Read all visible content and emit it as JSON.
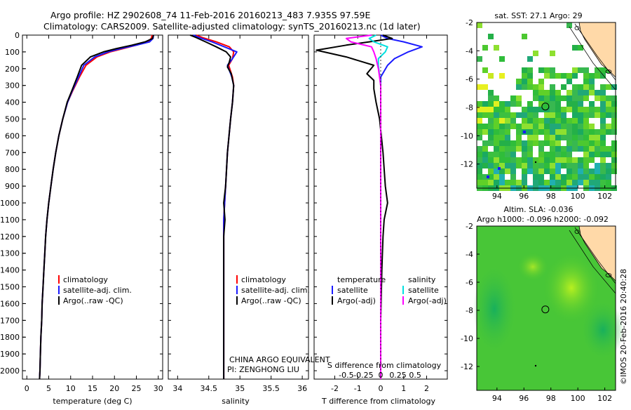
{
  "header": {
    "line1": "Argo profile: HZ 2902608_74 11-Feb-2016 20160213_483 7.935S 97.59E",
    "line2": "Climatology: CARS2009. Satellite-adjusted climatology: synTS_20160213.nc (1d later)"
  },
  "colors": {
    "climatology": "#ff0000",
    "satellite": "#1a1aff",
    "argo": "#000000",
    "sat_salinity": "#00e0e0",
    "argo_salinity": "#ff00ff",
    "land": "#ffd9a8",
    "ocean_field": "#2fbd3a"
  },
  "footer": {
    "credit": "©IMOS 20-Feb-2016 20:40:28",
    "institution": "CHINA ARGO EQUIVALENT",
    "pi": "PI: ZENGHONG LIU"
  },
  "chart_data": [
    {
      "id": "temperature",
      "type": "line",
      "xlabel": "temperature (deg C)",
      "ylabel": "",
      "xlim": [
        -1,
        31
      ],
      "ylim": [
        2050,
        0
      ],
      "xticks": [
        "0",
        "5",
        "10",
        "15",
        "20",
        "25",
        "30"
      ],
      "xtick_values": [
        0,
        5,
        10,
        15,
        20,
        25,
        30
      ],
      "ytick_values": [
        0,
        100,
        200,
        300,
        400,
        500,
        600,
        700,
        800,
        900,
        1000,
        1100,
        1200,
        1300,
        1400,
        1500,
        1600,
        1700,
        1800,
        1900,
        2000
      ],
      "legend": [
        "climatology",
        "satellite-adj. clim.",
        "Argo(..raw -QC)"
      ],
      "series": [
        {
          "name": "climatology",
          "color": "#ff0000",
          "values": [
            [
              28.6,
              0
            ],
            [
              28.4,
              20
            ],
            [
              27.5,
              40
            ],
            [
              25,
              60
            ],
            [
              22,
              80
            ],
            [
              19,
              100
            ],
            [
              16,
              130
            ],
            [
              13.5,
              180
            ],
            [
              12,
              250
            ],
            [
              10.5,
              330
            ],
            [
              9.3,
              400
            ],
            [
              8.2,
              500
            ],
            [
              7.3,
              600
            ],
            [
              6.6,
              700
            ],
            [
              6,
              800
            ],
            [
              5.5,
              900
            ],
            [
              5,
              1000
            ],
            [
              4.6,
              1100
            ],
            [
              4.3,
              1200
            ],
            [
              4.1,
              1300
            ],
            [
              3.9,
              1400
            ],
            [
              3.7,
              1500
            ],
            [
              3.5,
              1600
            ],
            [
              3.4,
              1700
            ],
            [
              3.2,
              1800
            ],
            [
              3.1,
              1900
            ],
            [
              3.0,
              2000
            ],
            [
              2.9,
              2050
            ]
          ]
        },
        {
          "name": "satellite-adj. clim.",
          "color": "#1a1aff",
          "values": [
            [
              28.9,
              0
            ],
            [
              28.8,
              20
            ],
            [
              28,
              40
            ],
            [
              25,
              60
            ],
            [
              21.5,
              80
            ],
            [
              18.5,
              100
            ],
            [
              15.5,
              130
            ],
            [
              13,
              180
            ],
            [
              11.8,
              250
            ],
            [
              10.4,
              330
            ],
            [
              9.3,
              400
            ],
            [
              8.2,
              500
            ],
            [
              7.3,
              600
            ],
            [
              6.6,
              700
            ],
            [
              6,
              800
            ],
            [
              5.5,
              900
            ],
            [
              5,
              1000
            ],
            [
              4.6,
              1100
            ],
            [
              4.3,
              1200
            ],
            [
              4.1,
              1300
            ],
            [
              3.9,
              1400
            ],
            [
              3.7,
              1500
            ],
            [
              3.5,
              1600
            ],
            [
              3.4,
              1700
            ],
            [
              3.2,
              1800
            ],
            [
              3.1,
              1900
            ],
            [
              3.0,
              2000
            ],
            [
              2.9,
              2050
            ]
          ]
        },
        {
          "name": "Argo(..raw -QC)",
          "color": "#000000",
          "values": [
            [
              28.9,
              0
            ],
            [
              28.7,
              20
            ],
            [
              27,
              40
            ],
            [
              24,
              60
            ],
            [
              20.5,
              80
            ],
            [
              17.5,
              100
            ],
            [
              14.5,
              130
            ],
            [
              12.5,
              180
            ],
            [
              11.5,
              250
            ],
            [
              10.3,
              330
            ],
            [
              9.2,
              400
            ],
            [
              8.2,
              500
            ],
            [
              7.3,
              600
            ],
            [
              6.6,
              700
            ],
            [
              6,
              800
            ],
            [
              5.5,
              900
            ],
            [
              5,
              1000
            ],
            [
              4.6,
              1100
            ],
            [
              4.3,
              1200
            ],
            [
              4.1,
              1300
            ],
            [
              3.9,
              1400
            ],
            [
              3.7,
              1500
            ],
            [
              3.5,
              1600
            ],
            [
              3.4,
              1700
            ],
            [
              3.2,
              1800
            ],
            [
              3.1,
              1900
            ],
            [
              3.0,
              2000
            ],
            [
              2.9,
              2050
            ]
          ]
        }
      ]
    },
    {
      "id": "salinity",
      "type": "line",
      "xlabel": "salinity",
      "xlim": [
        33.85,
        36.1
      ],
      "ylim": [
        2050,
        0
      ],
      "xticks": [
        "34",
        "34.5",
        "35",
        "35.5",
        "36"
      ],
      "xtick_values": [
        34,
        34.5,
        35,
        35.5,
        36
      ],
      "legend": [
        "climatology",
        "satellite-adj. clim.",
        "Argo(..raw -QC)"
      ],
      "series": [
        {
          "name": "climatology",
          "color": "#ff0000",
          "values": [
            [
              34.3,
              0
            ],
            [
              34.4,
              15
            ],
            [
              34.62,
              40
            ],
            [
              34.83,
              70
            ],
            [
              34.9,
              100
            ],
            [
              34.88,
              140
            ],
            [
              34.82,
              180
            ],
            [
              34.88,
              250
            ],
            [
              34.9,
              300
            ],
            [
              34.88,
              400
            ],
            [
              34.85,
              500
            ],
            [
              34.8,
              700
            ],
            [
              34.77,
              900
            ],
            [
              34.74,
              1100
            ],
            [
              34.74,
              1300
            ],
            [
              34.74,
              1500
            ],
            [
              34.74,
              1800
            ],
            [
              34.74,
              2050
            ]
          ]
        },
        {
          "name": "satellite-adj. clim.",
          "color": "#1a1aff",
          "values": [
            [
              34.25,
              0
            ],
            [
              34.35,
              15
            ],
            [
              34.55,
              40
            ],
            [
              34.75,
              70
            ],
            [
              34.95,
              100
            ],
            [
              34.88,
              140
            ],
            [
              34.8,
              180
            ],
            [
              34.87,
              250
            ],
            [
              34.9,
              300
            ],
            [
              34.88,
              400
            ],
            [
              34.85,
              500
            ],
            [
              34.8,
              700
            ],
            [
              34.77,
              900
            ],
            [
              34.74,
              1100
            ],
            [
              34.74,
              1300
            ],
            [
              34.74,
              1500
            ],
            [
              34.74,
              1800
            ],
            [
              34.74,
              2050
            ]
          ]
        },
        {
          "name": "Argo(..raw -QC)",
          "color": "#000000",
          "values": [
            [
              34.2,
              0
            ],
            [
              34.3,
              15
            ],
            [
              34.45,
              40
            ],
            [
              34.62,
              70
            ],
            [
              34.78,
              100
            ],
            [
              34.85,
              130
            ],
            [
              34.83,
              160
            ],
            [
              34.8,
              190
            ],
            [
              34.86,
              230
            ],
            [
              34.9,
              300
            ],
            [
              34.88,
              400
            ],
            [
              34.85,
              500
            ],
            [
              34.8,
              700
            ],
            [
              34.77,
              900
            ],
            [
              34.74,
              1000
            ],
            [
              34.76,
              1100
            ],
            [
              34.74,
              1200
            ],
            [
              34.74,
              1400
            ],
            [
              34.74,
              1600
            ],
            [
              34.74,
              1800
            ],
            [
              34.74,
              2050
            ]
          ]
        }
      ]
    },
    {
      "id": "difference",
      "type": "line",
      "xlabel": "T difference from climatology",
      "xlabel2": "S difference from climatology",
      "xlim": [
        -2.9,
        2.9
      ],
      "ylim": [
        2050,
        0
      ],
      "xticks": [
        "-2",
        "-1",
        "0",
        "1",
        "2"
      ],
      "xtick_values": [
        -2,
        -1,
        0,
        1,
        2
      ],
      "sticks": [
        "-0.5",
        "-0.25",
        "0",
        "0.25",
        "0.5"
      ],
      "stick_values": [
        -0.5,
        -0.25,
        0,
        0.25,
        0.5
      ],
      "legend_t_title": "temperature",
      "legend_s_title": "salinity",
      "legend": [
        "satellite",
        "Argo(-adj)",
        "satellite",
        "Argo(-adj)"
      ],
      "series": [
        {
          "name": "T satellite",
          "color": "#1a1aff",
          "values": [
            [
              0,
              0
            ],
            [
              0.3,
              20
            ],
            [
              1,
              40
            ],
            [
              1.8,
              70
            ],
            [
              1.2,
              100
            ],
            [
              0.6,
              140
            ],
            [
              0.3,
              180
            ],
            [
              0,
              250
            ],
            [
              0,
              400
            ],
            [
              0,
              2050
            ]
          ]
        },
        {
          "name": "T Argo(-adj)",
          "color": "#000000",
          "values": [
            [
              0.1,
              0
            ],
            [
              0.5,
              20
            ],
            [
              -0.5,
              40
            ],
            [
              -1.5,
              60
            ],
            [
              -2.8,
              90
            ],
            [
              -1.5,
              130
            ],
            [
              -0.3,
              180
            ],
            [
              -0.6,
              230
            ],
            [
              -0.3,
              270
            ],
            [
              -0.3,
              320
            ],
            [
              -0.2,
              400
            ],
            [
              -0.05,
              500
            ],
            [
              0.1,
              700
            ],
            [
              0.2,
              900
            ],
            [
              0.3,
              1000
            ],
            [
              0.15,
              1100
            ],
            [
              0.1,
              1200
            ],
            [
              0.05,
              1400
            ],
            [
              0,
              1700
            ],
            [
              0,
              2050
            ]
          ]
        },
        {
          "name": "S satellite",
          "color": "#00e0e0",
          "values": [
            [
              -0.2,
              0
            ],
            [
              -0.5,
              20
            ],
            [
              -0.3,
              40
            ],
            [
              0.3,
              70
            ],
            [
              0.2,
              100
            ],
            [
              -0.1,
              140
            ],
            [
              -0.1,
              180
            ],
            [
              0,
              300
            ],
            [
              0,
              2050
            ]
          ]
        },
        {
          "name": "S Argo(-adj)",
          "color": "#ff00ff",
          "values": [
            [
              -0.4,
              0
            ],
            [
              -1.5,
              20
            ],
            [
              -1.3,
              40
            ],
            [
              -0.4,
              70
            ],
            [
              -0.3,
              100
            ],
            [
              -0.2,
              140
            ],
            [
              -0.1,
              200
            ],
            [
              0,
              300
            ],
            [
              0,
              2050
            ]
          ]
        }
      ]
    },
    {
      "id": "sst_map",
      "type": "heatmap",
      "title": "sat. SST: 27.1  Argo: 29",
      "xlim": [
        92.5,
        102.8
      ],
      "ylim": [
        -13.7,
        -2
      ],
      "xticks": [
        "94",
        "96",
        "98",
        "100",
        "102"
      ],
      "xtick_values": [
        94,
        96,
        98,
        100,
        102
      ],
      "yticks": [
        "-2",
        "-4",
        "-6",
        "-8",
        "-10",
        "-12"
      ],
      "ytick_values": [
        -2,
        -4,
        -6,
        -8,
        -10,
        -12
      ],
      "float_position": [
        97.59,
        -7.935
      ]
    },
    {
      "id": "sla_map",
      "type": "heatmap",
      "title": "Altim. SLA: -0.036",
      "subtitle": "Argo h1000: -0.096  h2000: -0.092",
      "xlim": [
        92.5,
        102.8
      ],
      "ylim": [
        -13.7,
        -2
      ],
      "xticks": [
        "94",
        "96",
        "98",
        "100",
        "102"
      ],
      "xtick_values": [
        94,
        96,
        98,
        100,
        102
      ],
      "yticks": [
        "-2",
        "-4",
        "-6",
        "-8",
        "-10",
        "-12"
      ],
      "ytick_values": [
        -2,
        -4,
        -6,
        -8,
        -10,
        -12
      ],
      "float_position": [
        97.59,
        -7.935
      ]
    }
  ]
}
